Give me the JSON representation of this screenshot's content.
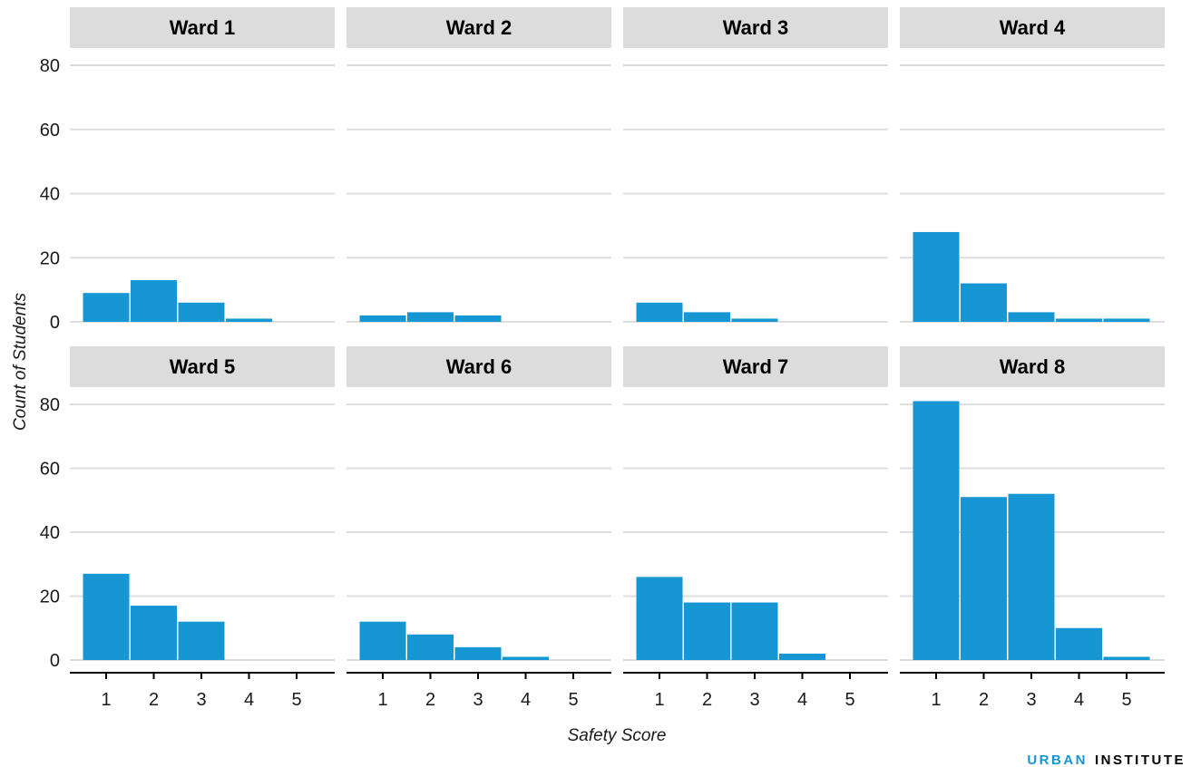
{
  "colors": {
    "bar": "#1696d2",
    "strip": "#dcdcdc",
    "grid": "#dedede",
    "axis": "#000000",
    "brand_accent": "#1696d2",
    "brand_dark": "#000000"
  },
  "brand": {
    "part1": "URBAN",
    "part2": "INSTITUTE"
  },
  "chart_data": {
    "type": "bar",
    "facet_by": "Ward",
    "xlabel": "Safety Score",
    "ylabel": "Count of Students",
    "categories": [
      "1",
      "2",
      "3",
      "4",
      "5"
    ],
    "ylim": [
      0,
      85
    ],
    "yticks": [
      "0",
      "20",
      "40",
      "60",
      "80"
    ],
    "grid": true,
    "panels": [
      {
        "name": "Ward 1",
        "values": [
          9,
          13,
          6,
          1,
          0
        ]
      },
      {
        "name": "Ward 2",
        "values": [
          2,
          3,
          2,
          0,
          0
        ]
      },
      {
        "name": "Ward 3",
        "values": [
          6,
          3,
          1,
          0,
          0
        ]
      },
      {
        "name": "Ward 4",
        "values": [
          28,
          12,
          3,
          1,
          1
        ]
      },
      {
        "name": "Ward 5",
        "values": [
          27,
          17,
          12,
          0,
          0
        ]
      },
      {
        "name": "Ward 6",
        "values": [
          12,
          8,
          4,
          1,
          0
        ]
      },
      {
        "name": "Ward 7",
        "values": [
          26,
          18,
          18,
          2,
          0
        ]
      },
      {
        "name": "Ward 8",
        "values": [
          81,
          51,
          52,
          10,
          1
        ]
      }
    ]
  }
}
